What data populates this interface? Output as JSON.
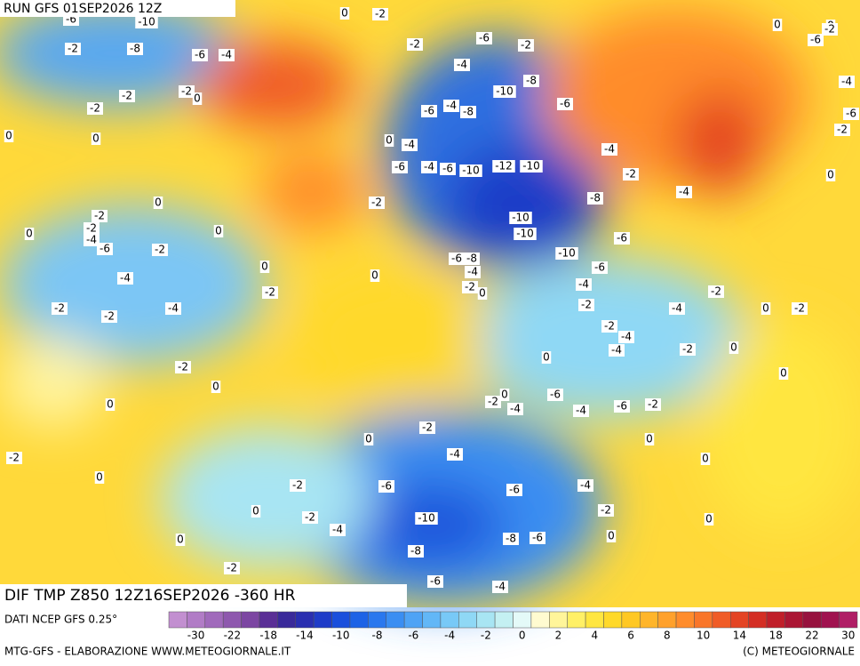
{
  "header": {
    "run": "RUN GFS 01SEP2026 12Z"
  },
  "map": {
    "title": "DIF TMP Z850 12Z16SEP2026 -360 HR",
    "contour_labels": [
      -6,
      -10,
      0,
      -2,
      -2,
      -8,
      -6,
      -4,
      -2,
      -6,
      -2,
      -4,
      -8,
      -10,
      -6,
      -6,
      -4,
      -8,
      -2,
      0,
      -2,
      -2,
      0,
      0,
      0,
      -4,
      -6,
      -4,
      -6,
      -10,
      -12,
      -10,
      -4,
      -2,
      -8,
      -4,
      -2,
      0,
      -2,
      -2,
      -4,
      -6,
      0,
      0,
      -2,
      -10,
      -10,
      -6,
      -10,
      -6,
      -8,
      -4,
      -6,
      0,
      0,
      -4,
      -2,
      -2,
      0,
      -4,
      -2,
      -2,
      -4,
      -2,
      -2,
      -4,
      0,
      -2,
      -2,
      -4,
      -4,
      -2,
      0,
      0,
      -2,
      0,
      0,
      0,
      0,
      -2,
      -6,
      -4,
      -4,
      -6,
      -2,
      -2,
      0,
      0,
      -2,
      -4,
      0,
      0,
      -2,
      -6,
      -6,
      -4,
      0,
      -2,
      -10,
      -2,
      -4,
      -8,
      -6,
      0,
      0,
      0,
      -8,
      -2,
      -6,
      -4,
      0,
      -6,
      -2,
      0,
      -4,
      -6,
      -2,
      0
    ]
  },
  "legend": {
    "source": "DATI NCEP GFS 0.25°",
    "colors": [
      "#c28fd0",
      "#b17cc6",
      "#a06abb",
      "#8e58ae",
      "#7c46a2",
      "#5a2f96",
      "#3a2a9a",
      "#2a2fb0",
      "#1f3cc8",
      "#1a4fdc",
      "#1d63e6",
      "#2a78ee",
      "#3a8ef2",
      "#4ea3f5",
      "#62b7f7",
      "#78c9f7",
      "#8fd8f5",
      "#a8e5f3",
      "#c4f0f2",
      "#e4faf8",
      "#fffbd0",
      "#fff59a",
      "#fff066",
      "#ffe640",
      "#ffd92a",
      "#ffc824",
      "#ffb52a",
      "#ffa12c",
      "#ff8c2c",
      "#f9762a",
      "#f05c27",
      "#e44424",
      "#d42e24",
      "#c01f2a",
      "#ab1634",
      "#97123e",
      "#a0124f",
      "#b01e66"
    ],
    "ticks": [
      -30,
      -22,
      -18,
      -14,
      -10,
      -8,
      -6,
      -4,
      -2,
      0,
      2,
      4,
      6,
      8,
      10,
      14,
      18,
      22,
      30
    ]
  },
  "footer": {
    "left": "MTG-GFS - ELABORAZIONE WWW.METEOGIORNALE.IT",
    "right": "(C) METEOGIORNALE"
  }
}
